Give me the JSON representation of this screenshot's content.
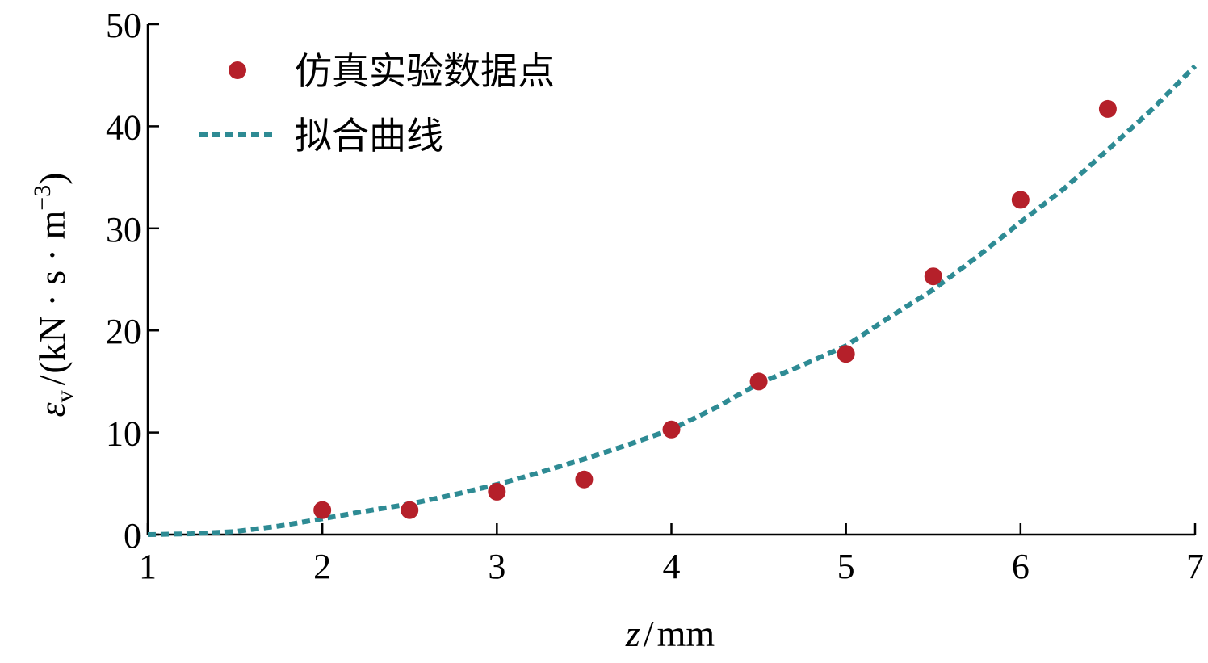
{
  "chart_data": {
    "type": "scatter",
    "xlim": [
      1,
      7
    ],
    "ylim": [
      0,
      50
    ],
    "x_ticks": [
      1,
      2,
      3,
      4,
      5,
      6,
      7
    ],
    "y_ticks": [
      0,
      10,
      20,
      30,
      40,
      50
    ],
    "grid": false,
    "legend_position": "top-left",
    "xlabel": {
      "var": "z",
      "slash": "/",
      "unit": "mm"
    },
    "ylabel": {
      "var": "ε",
      "sub": "v",
      "slash": "/",
      "unit": "(kN · s · m",
      "exp": "−3",
      "close": ")"
    },
    "series": [
      {
        "name": "仿真实验数据点",
        "type": "scatter",
        "color": "#b5202a",
        "x": [
          2,
          2.5,
          3,
          3.5,
          4,
          4.5,
          5,
          5.5,
          6,
          6.5
        ],
        "y": [
          2.4,
          2.4,
          4.2,
          5.4,
          10.3,
          15.0,
          17.7,
          25.3,
          32.8,
          41.7
        ]
      },
      {
        "name": "拟合曲线",
        "type": "line",
        "style": "dotted",
        "color": "#2e8b94",
        "x": [
          1,
          1.25,
          1.5,
          1.75,
          2,
          2.25,
          2.5,
          2.75,
          3,
          3.25,
          3.5,
          3.75,
          4,
          4.25,
          4.5,
          4.75,
          5,
          5.25,
          5.5,
          5.75,
          6,
          6.25,
          6.5,
          6.75,
          7
        ],
        "y": [
          0.0,
          0.08,
          0.3,
          0.83,
          1.55,
          2.3,
          3.0,
          3.9,
          4.9,
          6.1,
          7.4,
          8.8,
          10.3,
          12.4,
          14.8,
          16.6,
          18.5,
          21.3,
          24.0,
          27.2,
          30.6,
          33.9,
          37.7,
          41.6,
          45.9
        ]
      }
    ]
  }
}
